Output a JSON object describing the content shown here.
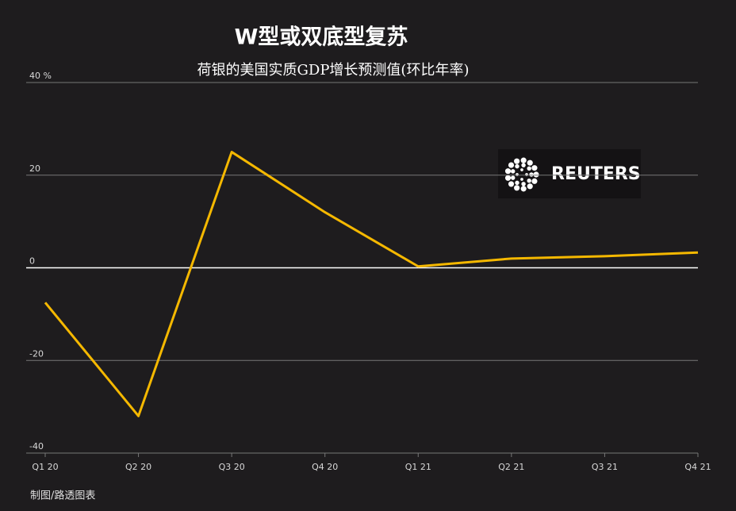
{
  "chart_data": {
    "type": "line",
    "title": "W型或双底型复苏",
    "subtitle": "荷银的美国实质GDP增长预测值(环比年率)",
    "categories": [
      "Q1 20",
      "Q2 20",
      "Q3 20",
      "Q4 20",
      "Q1 21",
      "Q2 21",
      "Q3 21",
      "Q4 21"
    ],
    "series": [
      {
        "name": "GDP",
        "color": "#f5b800",
        "values": [
          -7.5,
          -32,
          25,
          12,
          0.3,
          2,
          2.5,
          3.3
        ]
      }
    ],
    "ylim": [
      -40,
      40
    ],
    "yticks": [
      -40,
      -20,
      0,
      20,
      {
        "value": 40,
        "label": "40 %"
      }
    ],
    "grid": true,
    "logo": "REUTERS",
    "source": "制图/路透图表"
  }
}
